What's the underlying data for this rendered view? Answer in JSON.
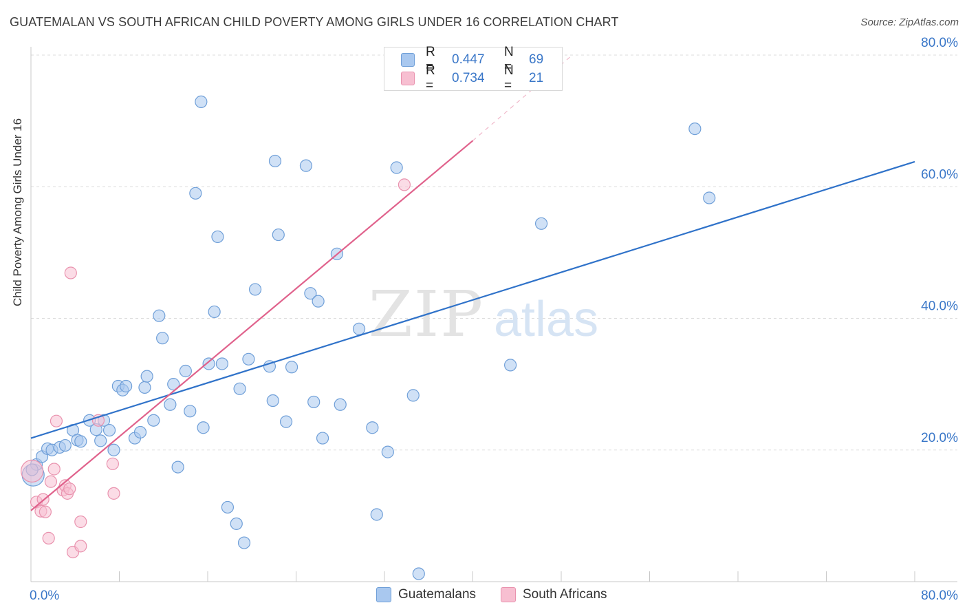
{
  "title": "GUATEMALAN VS SOUTH AFRICAN CHILD POVERTY AMONG GIRLS UNDER 16 CORRELATION CHART",
  "source": "Source: ZipAtlas.com",
  "watermark": {
    "zip": "ZIP",
    "atlas": "atlas"
  },
  "legend": {
    "rows": [
      {
        "r_label": "R =",
        "r_value": "0.447",
        "n_label": "N =",
        "n_value": "69"
      },
      {
        "r_label": "R =",
        "r_value": "0.734",
        "n_label": "N =",
        "n_value": "21"
      }
    ]
  },
  "bottom_legend": {
    "guatemalans": "Guatemalans",
    "south_africans": "South Africans"
  },
  "colors": {
    "blue_fill": "#a9c8ef",
    "blue_stroke": "#6f9fd8",
    "blue_line": "#2f72c9",
    "pink_fill": "#f7bfd1",
    "pink_stroke": "#e992ae",
    "pink_line": "#e0628c",
    "tick_text": "#3a77c8",
    "grid": "#dcdcdc"
  },
  "chart_data": {
    "type": "scatter",
    "title": "GUATEMALAN VS SOUTH AFRICAN CHILD POVERTY AMONG GIRLS UNDER 16 CORRELATION CHART",
    "xlabel": "",
    "ylabel": "Child Poverty Among Girls Under 16",
    "xlim": [
      0,
      80
    ],
    "ylim": [
      0,
      80
    ],
    "x_tick_labels": [
      "0.0%",
      "80.0%"
    ],
    "y_tick_labels": [
      "80.0%",
      "60.0%",
      "40.0%",
      "20.0%"
    ],
    "y_ticks": [
      80,
      60,
      40,
      20
    ],
    "grid": true,
    "legend_position": "top-center",
    "series": [
      {
        "name": "Guatemalans",
        "color": "#a9c8ef",
        "r": "0.447",
        "n": "69",
        "trend": {
          "x": [
            0,
            80
          ],
          "y": [
            21.8,
            63.8
          ]
        },
        "points": [
          [
            0.2,
            16.2
          ],
          [
            0.5,
            17.8
          ],
          [
            1.0,
            19.0
          ],
          [
            1.5,
            20.2
          ],
          [
            1.9,
            20.0
          ],
          [
            2.6,
            20.4
          ],
          [
            3.1,
            20.7
          ],
          [
            3.8,
            23.0
          ],
          [
            4.2,
            21.5
          ],
          [
            4.5,
            21.3
          ],
          [
            5.3,
            24.5
          ],
          [
            5.9,
            23.1
          ],
          [
            6.3,
            21.4
          ],
          [
            6.6,
            24.5
          ],
          [
            7.1,
            23.0
          ],
          [
            7.5,
            20.0
          ],
          [
            7.9,
            29.7
          ],
          [
            8.3,
            29.1
          ],
          [
            8.6,
            29.7
          ],
          [
            9.4,
            21.8
          ],
          [
            9.9,
            22.7
          ],
          [
            10.3,
            29.5
          ],
          [
            10.5,
            31.2
          ],
          [
            11.1,
            24.5
          ],
          [
            11.6,
            40.4
          ],
          [
            11.9,
            37.0
          ],
          [
            12.6,
            26.9
          ],
          [
            12.9,
            30.0
          ],
          [
            13.3,
            17.4
          ],
          [
            14.0,
            32.0
          ],
          [
            14.4,
            25.9
          ],
          [
            14.9,
            59.0
          ],
          [
            15.4,
            72.9
          ],
          [
            15.6,
            23.4
          ],
          [
            16.1,
            33.1
          ],
          [
            16.6,
            41.0
          ],
          [
            16.9,
            52.4
          ],
          [
            17.3,
            33.1
          ],
          [
            17.8,
            11.3
          ],
          [
            18.6,
            8.8
          ],
          [
            18.9,
            29.3
          ],
          [
            19.3,
            5.9
          ],
          [
            19.7,
            33.8
          ],
          [
            20.3,
            44.4
          ],
          [
            21.6,
            32.7
          ],
          [
            21.9,
            27.5
          ],
          [
            22.1,
            63.9
          ],
          [
            22.4,
            52.7
          ],
          [
            23.1,
            24.3
          ],
          [
            23.6,
            32.6
          ],
          [
            24.9,
            63.2
          ],
          [
            25.3,
            43.8
          ],
          [
            25.6,
            27.3
          ],
          [
            26.0,
            42.6
          ],
          [
            26.4,
            21.8
          ],
          [
            27.7,
            49.8
          ],
          [
            28.0,
            26.9
          ],
          [
            29.7,
            38.4
          ],
          [
            30.9,
            23.4
          ],
          [
            31.3,
            10.2
          ],
          [
            32.3,
            19.7
          ],
          [
            33.1,
            62.9
          ],
          [
            34.6,
            28.3
          ],
          [
            35.1,
            1.2
          ],
          [
            43.4,
            32.9
          ],
          [
            46.2,
            54.4
          ],
          [
            60.1,
            68.8
          ],
          [
            61.4,
            58.3
          ],
          [
            0.1,
            17.0
          ]
        ]
      },
      {
        "name": "South Africans",
        "color": "#f7bfd1",
        "r": "0.734",
        "n": "21",
        "trend": {
          "x": [
            0,
            40
          ],
          "y": [
            10.8,
            67.0
          ],
          "dashed_to": [
            49,
            80
          ]
        },
        "points": [
          [
            0.1,
            16.8
          ],
          [
            0.5,
            12.1
          ],
          [
            0.9,
            10.7
          ],
          [
            1.1,
            12.5
          ],
          [
            1.3,
            10.6
          ],
          [
            1.6,
            6.6
          ],
          [
            1.8,
            15.2
          ],
          [
            2.1,
            17.1
          ],
          [
            2.3,
            24.4
          ],
          [
            2.9,
            13.9
          ],
          [
            3.1,
            14.6
          ],
          [
            3.3,
            13.4
          ],
          [
            3.5,
            14.1
          ],
          [
            3.6,
            46.9
          ],
          [
            3.8,
            4.5
          ],
          [
            4.5,
            5.4
          ],
          [
            4.5,
            9.1
          ],
          [
            6.1,
            24.5
          ],
          [
            7.4,
            17.9
          ],
          [
            7.5,
            13.4
          ],
          [
            33.8,
            60.3
          ]
        ]
      }
    ]
  }
}
